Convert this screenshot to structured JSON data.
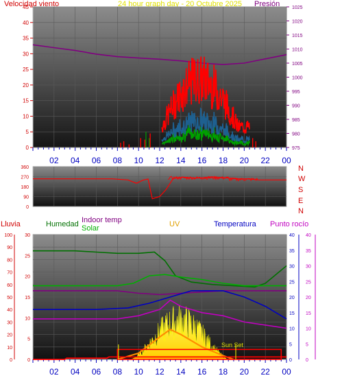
{
  "header": {
    "wind_label": "Velocidad viento",
    "title": "24 hour graph day - 20 Octubre 2025",
    "pressure_label": "Presión"
  },
  "top_legend": {
    "lluvia": "Lluvia",
    "humedad": "Humedad",
    "indoor_temp": "Indoor temp",
    "solar": "Solar",
    "uv": "UV",
    "temperatura": "Temperatura",
    "punto_rocio": "Punto rocío"
  },
  "sunset_label": "Sun Set",
  "direction_labels": [
    "N",
    "W",
    "S",
    "E",
    "N"
  ],
  "colors": {
    "wind_label": "#d00000",
    "title": "#e0e000",
    "pressure": "#800080",
    "lluvia": "#d00000",
    "humedad": "#007000",
    "indoor_temp": "#800080",
    "solar": "#00b000",
    "uv": "#e0a000",
    "temperatura": "#0000c0",
    "punto_rocio": "#c000c0",
    "dir_labels": "#d00000",
    "sunset": "#e0e000"
  },
  "chart_data": [
    {
      "id": "wind_pressure",
      "type": "line",
      "x_ticks": [
        "02",
        "04",
        "06",
        "08",
        "10",
        "12",
        "14",
        "16",
        "18",
        "20",
        "22",
        "00"
      ],
      "y_left_ticks": [
        0,
        5,
        10,
        15,
        20,
        25,
        30,
        35,
        40,
        45
      ],
      "y_right_ticks": [
        975,
        980,
        985,
        990,
        995,
        1000,
        1005,
        1010,
        1015,
        1020,
        1025
      ],
      "ylim_left": [
        0,
        45
      ],
      "ylim_right": [
        975,
        1025
      ],
      "xlim_hours": [
        0,
        24
      ],
      "series": [
        {
          "name": "Presión",
          "axis": "right",
          "color": "#800080",
          "points": [
            [
              0,
              1011.5
            ],
            [
              2,
              1010.5
            ],
            [
              4,
              1009.5
            ],
            [
              6,
              1008.2
            ],
            [
              8,
              1007.3
            ],
            [
              10,
              1006.8
            ],
            [
              12,
              1006.4
            ],
            [
              14,
              1005.8
            ],
            [
              16,
              1005.0
            ],
            [
              18,
              1004.5
            ],
            [
              20,
              1005.0
            ],
            [
              22,
              1006.5
            ],
            [
              24,
              1008
            ]
          ]
        }
      ],
      "gusts_envelope": {
        "color": "#ff0000",
        "start_hour": 12.2,
        "end_hour": 20.5,
        "peak": 30
      },
      "wind_avg": {
        "color": "#1e6090"
      },
      "wind_speed": {
        "color": "#00a000"
      }
    },
    {
      "id": "wind_direction",
      "type": "line",
      "y_ticks": [
        0,
        90,
        180,
        270,
        360
      ],
      "ylim": [
        0,
        360
      ],
      "series": [
        {
          "name": "",
          "color": "#ff0000",
          "points": [
            [
              0,
              250
            ],
            [
              7.5,
              250
            ],
            [
              9.0,
              240
            ],
            [
              9.8,
              210
            ],
            [
              10.4,
              238
            ],
            [
              10.9,
              248
            ],
            [
              11.3,
              70
            ],
            [
              12.0,
              90
            ],
            [
              12.6,
              150
            ],
            [
              13.3,
              250
            ],
            [
              14.2,
              262
            ],
            [
              15.6,
              258
            ],
            [
              16.9,
              262
            ],
            [
              18.4,
              255
            ],
            [
              19.4,
              248
            ],
            [
              20.4,
              242
            ],
            [
              21.4,
              240
            ],
            [
              24,
              240
            ]
          ]
        }
      ]
    },
    {
      "id": "weather_multi",
      "type": "line",
      "axis_left_lluvia": [
        0,
        10,
        20,
        30,
        40,
        50,
        60,
        70,
        80,
        90,
        100
      ],
      "axis_left_humedad": [
        0,
        5,
        10,
        15,
        20,
        25,
        30
      ],
      "axis_right_temp": [
        0,
        5,
        10,
        15,
        20,
        25,
        30,
        35,
        40
      ],
      "axis_right_dew": [
        0,
        5,
        10,
        15,
        20,
        25,
        30,
        35,
        40
      ],
      "x_ticks": [
        "02",
        "04",
        "06",
        "08",
        "10",
        "12",
        "14",
        "16",
        "18",
        "20",
        "22",
        "00"
      ],
      "sunrise_hour": 8.1,
      "sunset_hour": 19.2,
      "series": [
        {
          "name": "Humedad",
          "color": "#007000",
          "unit_max": 100,
          "points": [
            [
              0,
              87
            ],
            [
              4,
              87
            ],
            [
              6,
              86
            ],
            [
              8,
              85
            ],
            [
              10,
              85
            ],
            [
              11.5,
              86
            ],
            [
              12.5,
              79
            ],
            [
              13.5,
              67
            ],
            [
              15,
              62
            ],
            [
              17,
              60
            ],
            [
              19,
              59
            ],
            [
              21,
              58
            ],
            [
              22,
              61
            ],
            [
              24,
              75
            ]
          ]
        },
        {
          "name": "Solar",
          "color": "#00b000",
          "unit_max": 100,
          "points": [
            [
              0,
              59
            ],
            [
              6,
              59
            ],
            [
              8,
              59
            ],
            [
              9.5,
              61
            ],
            [
              11,
              67
            ],
            [
              12.5,
              68
            ],
            [
              14,
              66
            ],
            [
              16,
              64
            ],
            [
              18,
              61
            ],
            [
              20,
              59
            ],
            [
              24,
              59
            ]
          ]
        },
        {
          "name": "Indoor temp",
          "color": "#800080",
          "unit_max": 100,
          "points": [
            [
              0,
              55
            ],
            [
              8,
              55
            ],
            [
              10,
              53
            ],
            [
              12,
              52
            ],
            [
              14,
              53
            ],
            [
              16,
              54
            ],
            [
              18,
              55
            ],
            [
              24,
              55
            ]
          ]
        },
        {
          "name": "Temperatura",
          "color": "#0000c0",
          "unit_max": 40,
          "points": [
            [
              0,
              16
            ],
            [
              6,
              16
            ],
            [
              9,
              16.5
            ],
            [
              11,
              18
            ],
            [
              13,
              20
            ],
            [
              15,
              22
            ],
            [
              18,
              22
            ],
            [
              20,
              20
            ],
            [
              22,
              17
            ],
            [
              24,
              13
            ]
          ]
        },
        {
          "name": "Punto rocío",
          "color": "#c000c0",
          "unit_max": 40,
          "points": [
            [
              0,
              13
            ],
            [
              8,
              13
            ],
            [
              10,
              14
            ],
            [
              12,
              16
            ],
            [
              13,
              19
            ],
            [
              14,
              17
            ],
            [
              16,
              15
            ],
            [
              18,
              14
            ],
            [
              20,
              12
            ],
            [
              22,
              11
            ],
            [
              24,
              10
            ]
          ]
        },
        {
          "name": "UV",
          "color": "#ff8c00",
          "unit_max": 100,
          "points": [
            [
              8,
              0
            ],
            [
              10,
              5
            ],
            [
              12,
              18
            ],
            [
              13,
              24
            ],
            [
              14,
              20
            ],
            [
              16,
              10
            ],
            [
              18,
              3
            ],
            [
              19,
              0
            ]
          ]
        }
      ],
      "solar_area": {
        "color": "#ffff00",
        "start_hour": 9.2,
        "end_hour": 18.6,
        "peak": 45
      },
      "lluvia_series": {
        "color": "#ff0000",
        "points": [
          [
            0,
            0
          ],
          [
            3,
            0
          ],
          [
            3.2,
            1
          ],
          [
            7,
            1
          ],
          [
            7.2,
            2
          ],
          [
            8,
            2
          ],
          [
            24,
            2
          ]
        ]
      },
      "rect_outline": {
        "color": "#ff0000",
        "start_hour": 8.0,
        "end_hour": 23.5,
        "top": 8,
        "bottom": 0
      }
    }
  ]
}
